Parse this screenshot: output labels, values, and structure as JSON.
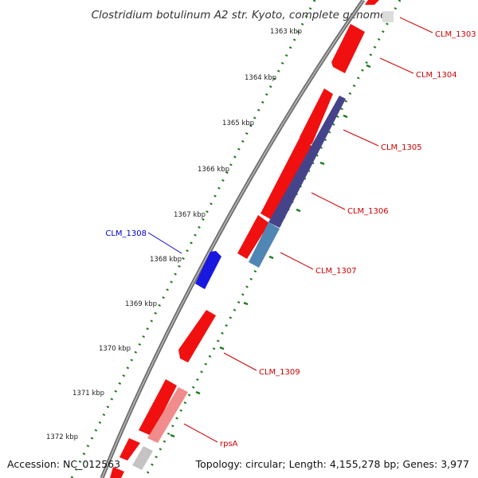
{
  "title": "Clostridium botulinum A2 str. Kyoto, complete genome",
  "accession": "Accession: NC_012563",
  "summary": "Topology: circular; Length: 4,155,278 bp; Genes: 3,977",
  "colors": {
    "backbone": "#8a8a8a",
    "tick_dots": "#1e7a1e",
    "forward_gene": "#f01010",
    "reverse_gene": "#1818e0",
    "cds_dark": "#45448a",
    "cds_light": "#4f86b4",
    "gene_light": "#f08c8c",
    "gene_gray": "#c4c4c4",
    "red_label": "#cc0000",
    "blue_label": "#0000cc"
  },
  "scale_ticks": [
    {
      "label": "1363 kbp"
    },
    {
      "label": "1364 kbp"
    },
    {
      "label": "1365 kbp"
    },
    {
      "label": "1366 kbp"
    },
    {
      "label": "1367 kbp"
    },
    {
      "label": "1368 kbp"
    },
    {
      "label": "1369 kbp"
    },
    {
      "label": "1370 kbp"
    },
    {
      "label": "1371 kbp"
    },
    {
      "label": "1372 kbp"
    }
  ],
  "genes": [
    {
      "label": "CLM_1303",
      "strand": "forward",
      "label_color": "red"
    },
    {
      "label": "CLM_1304",
      "strand": "forward",
      "label_color": "red"
    },
    {
      "label": "CLM_1305",
      "strand": "forward",
      "label_color": "red"
    },
    {
      "label": "CLM_1306",
      "strand": "forward",
      "label_color": "red"
    },
    {
      "label": "CLM_1307",
      "strand": "forward",
      "label_color": "red"
    },
    {
      "label": "CLM_1308",
      "strand": "reverse",
      "label_color": "blue"
    },
    {
      "label": "CLM_1309",
      "strand": "forward",
      "label_color": "red"
    },
    {
      "label": "rpsA",
      "strand": "forward",
      "label_color": "red"
    }
  ]
}
